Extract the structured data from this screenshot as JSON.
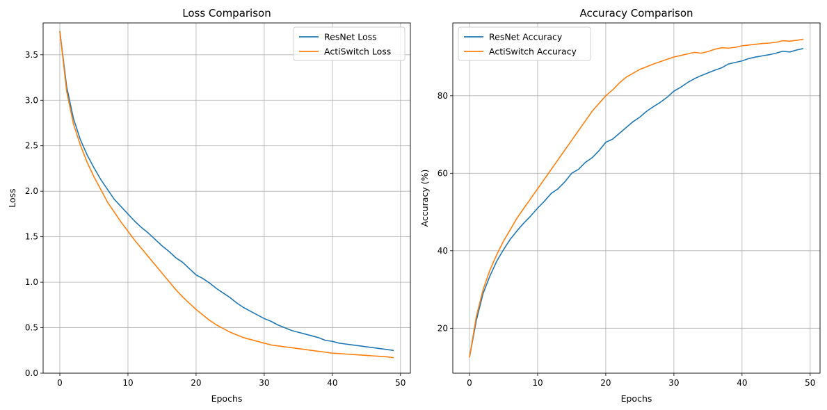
{
  "colors": {
    "series0": "#1f77b4",
    "series1": "#ff7f0e",
    "grid": "#b0b0b0"
  },
  "chart_data": [
    {
      "type": "line",
      "title": "Loss Comparison",
      "xlabel": "Epochs",
      "ylabel": "Loss",
      "xlim": [
        -2.45,
        51.45
      ],
      "ylim": [
        0.0,
        3.85
      ],
      "xticks": [
        0,
        10,
        20,
        30,
        40,
        50
      ],
      "yticks": [
        0.0,
        0.5,
        1.0,
        1.5,
        2.0,
        2.5,
        3.0,
        3.5
      ],
      "ytick_labels": [
        "0.0",
        "0.5",
        "1.0",
        "1.5",
        "2.0",
        "2.5",
        "3.0",
        "3.5"
      ],
      "grid": true,
      "legend": "upper-right",
      "series": [
        {
          "name": "ResNet Loss",
          "color": "#1f77b4",
          "x": [
            0,
            1,
            2,
            3,
            4,
            5,
            6,
            7,
            8,
            9,
            10,
            11,
            12,
            13,
            14,
            15,
            16,
            17,
            18,
            19,
            20,
            21,
            22,
            23,
            24,
            25,
            26,
            27,
            28,
            29,
            30,
            31,
            32,
            33,
            34,
            35,
            36,
            37,
            38,
            39,
            40,
            41,
            42,
            43,
            44,
            45,
            46,
            47,
            48,
            49
          ],
          "values": [
            3.76,
            3.15,
            2.8,
            2.57,
            2.4,
            2.26,
            2.13,
            2.02,
            1.91,
            1.83,
            1.75,
            1.67,
            1.6,
            1.54,
            1.47,
            1.4,
            1.34,
            1.27,
            1.22,
            1.15,
            1.08,
            1.04,
            0.99,
            0.93,
            0.88,
            0.83,
            0.77,
            0.72,
            0.68,
            0.64,
            0.6,
            0.57,
            0.53,
            0.5,
            0.47,
            0.45,
            0.43,
            0.41,
            0.39,
            0.36,
            0.35,
            0.33,
            0.32,
            0.31,
            0.3,
            0.29,
            0.28,
            0.27,
            0.26,
            0.25
          ]
        },
        {
          "name": "ActiSwitch Loss",
          "color": "#ff7f0e",
          "x": [
            0,
            1,
            2,
            3,
            4,
            5,
            6,
            7,
            8,
            9,
            10,
            11,
            12,
            13,
            14,
            15,
            16,
            17,
            18,
            19,
            20,
            21,
            22,
            23,
            24,
            25,
            26,
            27,
            28,
            29,
            30,
            31,
            32,
            33,
            34,
            35,
            36,
            37,
            38,
            39,
            40,
            41,
            42,
            43,
            44,
            45,
            46,
            47,
            48,
            49
          ],
          "values": [
            3.76,
            3.1,
            2.74,
            2.51,
            2.32,
            2.16,
            2.02,
            1.88,
            1.77,
            1.66,
            1.56,
            1.46,
            1.37,
            1.28,
            1.19,
            1.1,
            1.01,
            0.92,
            0.84,
            0.77,
            0.7,
            0.64,
            0.58,
            0.53,
            0.49,
            0.45,
            0.42,
            0.39,
            0.37,
            0.35,
            0.33,
            0.31,
            0.3,
            0.29,
            0.28,
            0.27,
            0.26,
            0.25,
            0.24,
            0.23,
            0.22,
            0.215,
            0.21,
            0.205,
            0.2,
            0.195,
            0.19,
            0.185,
            0.18,
            0.17
          ]
        }
      ]
    },
    {
      "type": "line",
      "title": "Accuracy Comparison",
      "xlabel": "Epochs",
      "ylabel": "Accuracy (%)",
      "xlim": [
        -2.45,
        51.45
      ],
      "ylim": [
        8.4,
        98.8
      ],
      "xticks": [
        0,
        10,
        20,
        30,
        40,
        50
      ],
      "yticks": [
        20,
        40,
        60,
        80
      ],
      "ytick_labels": [
        "20",
        "40",
        "60",
        "80"
      ],
      "grid": true,
      "legend": "upper-left",
      "series": [
        {
          "name": "ResNet Accuracy",
          "color": "#1f77b4",
          "x": [
            0,
            1,
            2,
            3,
            4,
            5,
            6,
            7,
            8,
            9,
            10,
            11,
            12,
            13,
            14,
            15,
            16,
            17,
            18,
            19,
            20,
            21,
            22,
            23,
            24,
            25,
            26,
            27,
            28,
            29,
            30,
            31,
            32,
            33,
            34,
            35,
            36,
            37,
            38,
            39,
            40,
            41,
            42,
            43,
            44,
            45,
            46,
            47,
            48,
            49
          ],
          "values": [
            12.5,
            22.0,
            29.0,
            33.5,
            37.3,
            40.3,
            43.0,
            45.2,
            47.2,
            49.0,
            51.0,
            52.8,
            54.8,
            56.0,
            57.8,
            60.0,
            61.0,
            62.8,
            64.0,
            65.8,
            68.0,
            68.8,
            70.3,
            71.8,
            73.3,
            74.5,
            76.0,
            77.2,
            78.3,
            79.6,
            81.2,
            82.2,
            83.4,
            84.4,
            85.2,
            85.9,
            86.6,
            87.2,
            88.2,
            88.6,
            89.0,
            89.6,
            90.0,
            90.3,
            90.6,
            91.0,
            91.5,
            91.3,
            91.8,
            92.2
          ]
        },
        {
          "name": "ActiSwitch Accuracy",
          "color": "#ff7f0e",
          "x": [
            0,
            1,
            2,
            3,
            4,
            5,
            6,
            7,
            8,
            9,
            10,
            11,
            12,
            13,
            14,
            15,
            16,
            17,
            18,
            19,
            20,
            21,
            22,
            23,
            24,
            25,
            26,
            27,
            28,
            29,
            30,
            31,
            32,
            33,
            34,
            35,
            36,
            37,
            38,
            39,
            40,
            41,
            42,
            43,
            44,
            45,
            46,
            47,
            48,
            49
          ],
          "values": [
            12.5,
            23.0,
            30.0,
            35.0,
            39.0,
            42.5,
            45.5,
            48.5,
            51.0,
            53.5,
            56.0,
            58.5,
            61.0,
            63.5,
            66.0,
            68.5,
            71.0,
            73.5,
            76.0,
            78.0,
            80.0,
            81.5,
            83.3,
            84.8,
            85.8,
            86.8,
            87.5,
            88.2,
            88.8,
            89.4,
            90.0,
            90.4,
            90.8,
            91.2,
            91.0,
            91.4,
            92.0,
            92.4,
            92.3,
            92.5,
            92.9,
            93.1,
            93.3,
            93.5,
            93.6,
            93.8,
            94.2,
            94.1,
            94.3,
            94.6
          ]
        }
      ]
    }
  ]
}
